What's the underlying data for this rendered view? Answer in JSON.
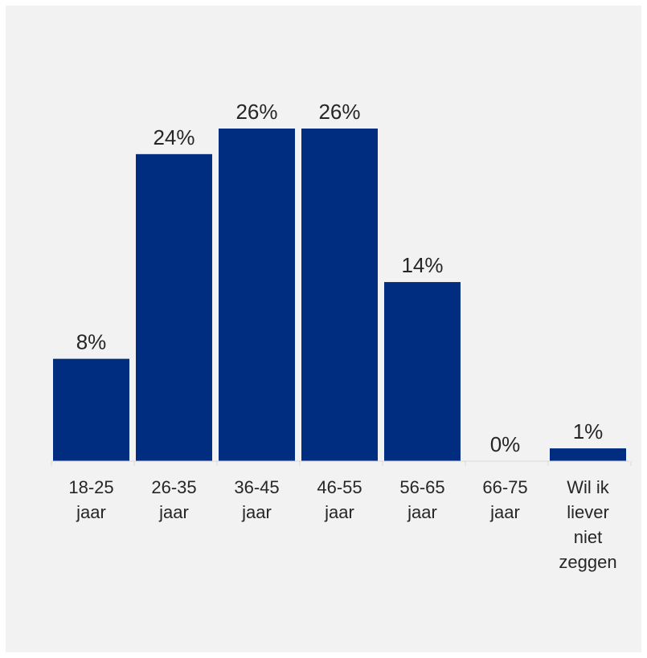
{
  "chart_data": {
    "type": "bar",
    "categories": [
      [
        "18-25",
        "jaar"
      ],
      [
        "26-35",
        "jaar"
      ],
      [
        "36-45",
        "jaar"
      ],
      [
        "46-55",
        "jaar"
      ],
      [
        "56-65",
        "jaar"
      ],
      [
        "66-75",
        "jaar"
      ],
      [
        "Wil ik",
        "liever",
        "niet",
        "zeggen"
      ]
    ],
    "values": [
      8,
      24,
      26,
      26,
      14,
      0,
      1
    ],
    "value_labels": [
      "8%",
      "24%",
      "26%",
      "26%",
      "14%",
      "0%",
      "1%"
    ],
    "unit": "%",
    "ylim": [
      0,
      26
    ],
    "grid": false,
    "legend": "none",
    "title": "",
    "xlabel": "",
    "ylabel": ""
  },
  "colors": {
    "bar": "#002d80",
    "background": "#f2f2f2",
    "axis": "#d9d9d9",
    "text": "#262626"
  }
}
